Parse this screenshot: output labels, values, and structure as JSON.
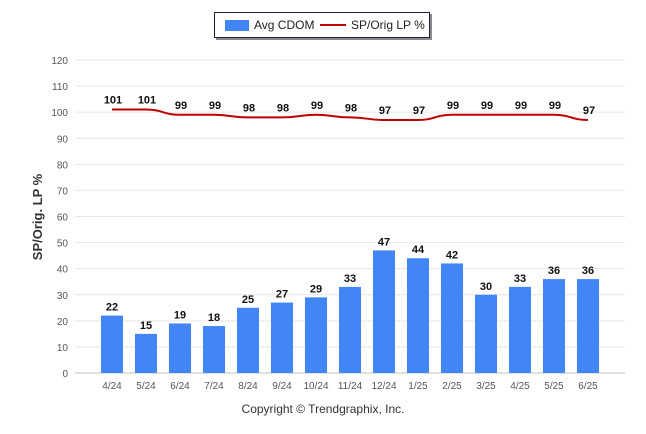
{
  "legend": {
    "bar_label": "Avg CDOM",
    "line_label": "SP/Orig LP %"
  },
  "footer": "Copyright © Trendgraphix, Inc.",
  "colors": {
    "bar": "#4285f4",
    "line": "#c00000",
    "grid": "#e6e6e6"
  },
  "chart_data": {
    "type": "bar",
    "ylabel": "SP/Orig. LP %",
    "xlabel": "",
    "ylim": [
      0,
      120
    ],
    "yticks": [
      0,
      10,
      20,
      30,
      40,
      50,
      60,
      70,
      80,
      90,
      100,
      110,
      120
    ],
    "grid": true,
    "legend_position": "top-center",
    "categories": [
      "4/24",
      "5/24",
      "6/24",
      "7/24",
      "8/24",
      "9/24",
      "10/24",
      "11/24",
      "12/24",
      "1/25",
      "2/25",
      "3/25",
      "4/25",
      "5/25",
      "6/25"
    ],
    "series": [
      {
        "name": "Avg CDOM",
        "type": "bar",
        "values": [
          22,
          15,
          19,
          18,
          25,
          27,
          29,
          33,
          47,
          44,
          42,
          30,
          33,
          36,
          36
        ]
      },
      {
        "name": "SP/Orig LP %",
        "type": "line",
        "values": [
          101,
          101,
          99,
          99,
          98,
          98,
          99,
          98,
          97,
          97,
          99,
          99,
          99,
          99,
          97
        ]
      }
    ]
  }
}
